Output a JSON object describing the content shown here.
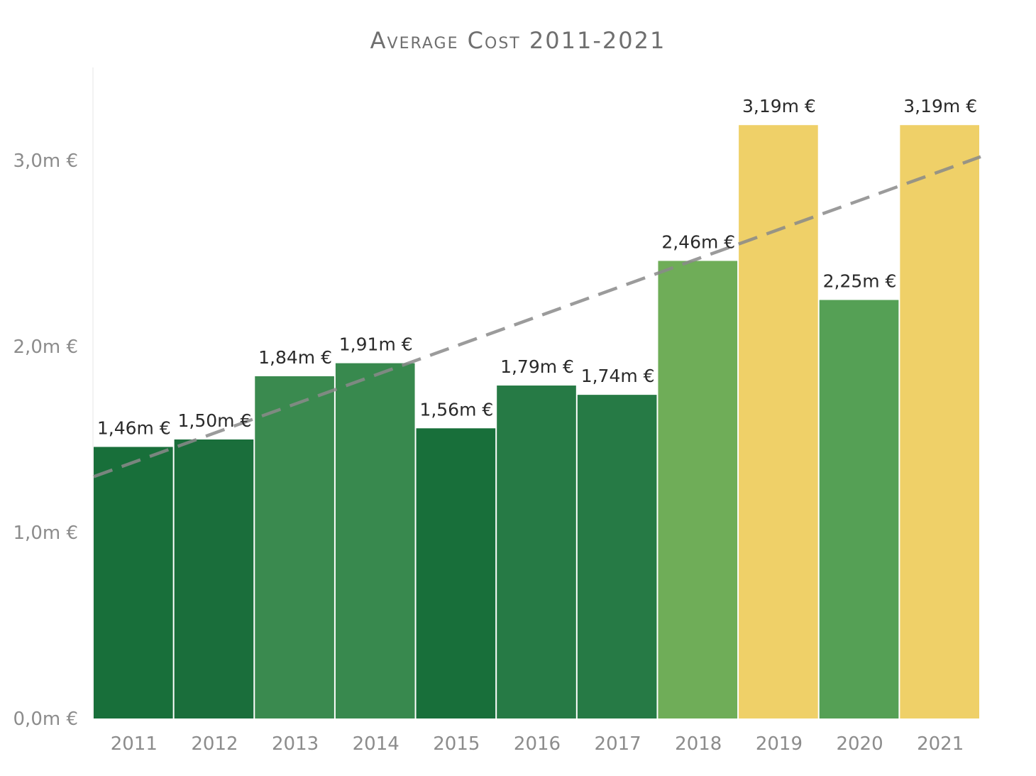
{
  "chart_data": {
    "type": "bar",
    "title": "Average Cost 2011-2021",
    "xlabel": "",
    "ylabel": "",
    "categories": [
      "2011",
      "2012",
      "2013",
      "2014",
      "2015",
      "2016",
      "2017",
      "2018",
      "2019",
      "2020",
      "2021"
    ],
    "values": [
      1.46,
      1.5,
      1.84,
      1.91,
      1.56,
      1.79,
      1.74,
      2.46,
      3.19,
      2.25,
      3.19
    ],
    "value_labels": [
      "1,46m €",
      "1,50m €",
      "1,84m €",
      "1,91m €",
      "1,56m €",
      "1,79m €",
      "1,74m €",
      "2,46m €",
      "3,19m €",
      "2,25m €",
      "3,19m €"
    ],
    "bar_colors": [
      "#186f3a",
      "#1a6e3b",
      "#3a8a4f",
      "#38894e",
      "#186f3a",
      "#267a45",
      "#267a45",
      "#6fad58",
      "#efd068",
      "#55a055",
      "#efd068"
    ],
    "ylim": [
      0,
      3.5
    ],
    "yticks": [
      0,
      1,
      2,
      3
    ],
    "ytick_labels": [
      "0,0m €",
      "1,0m €",
      "2,0m €",
      "3,0m €"
    ],
    "trendline": {
      "style": "dashed",
      "color": "#8a8a8a",
      "start_value": 1.3,
      "end_value": 3.02
    },
    "grid": false,
    "legend": "none"
  }
}
